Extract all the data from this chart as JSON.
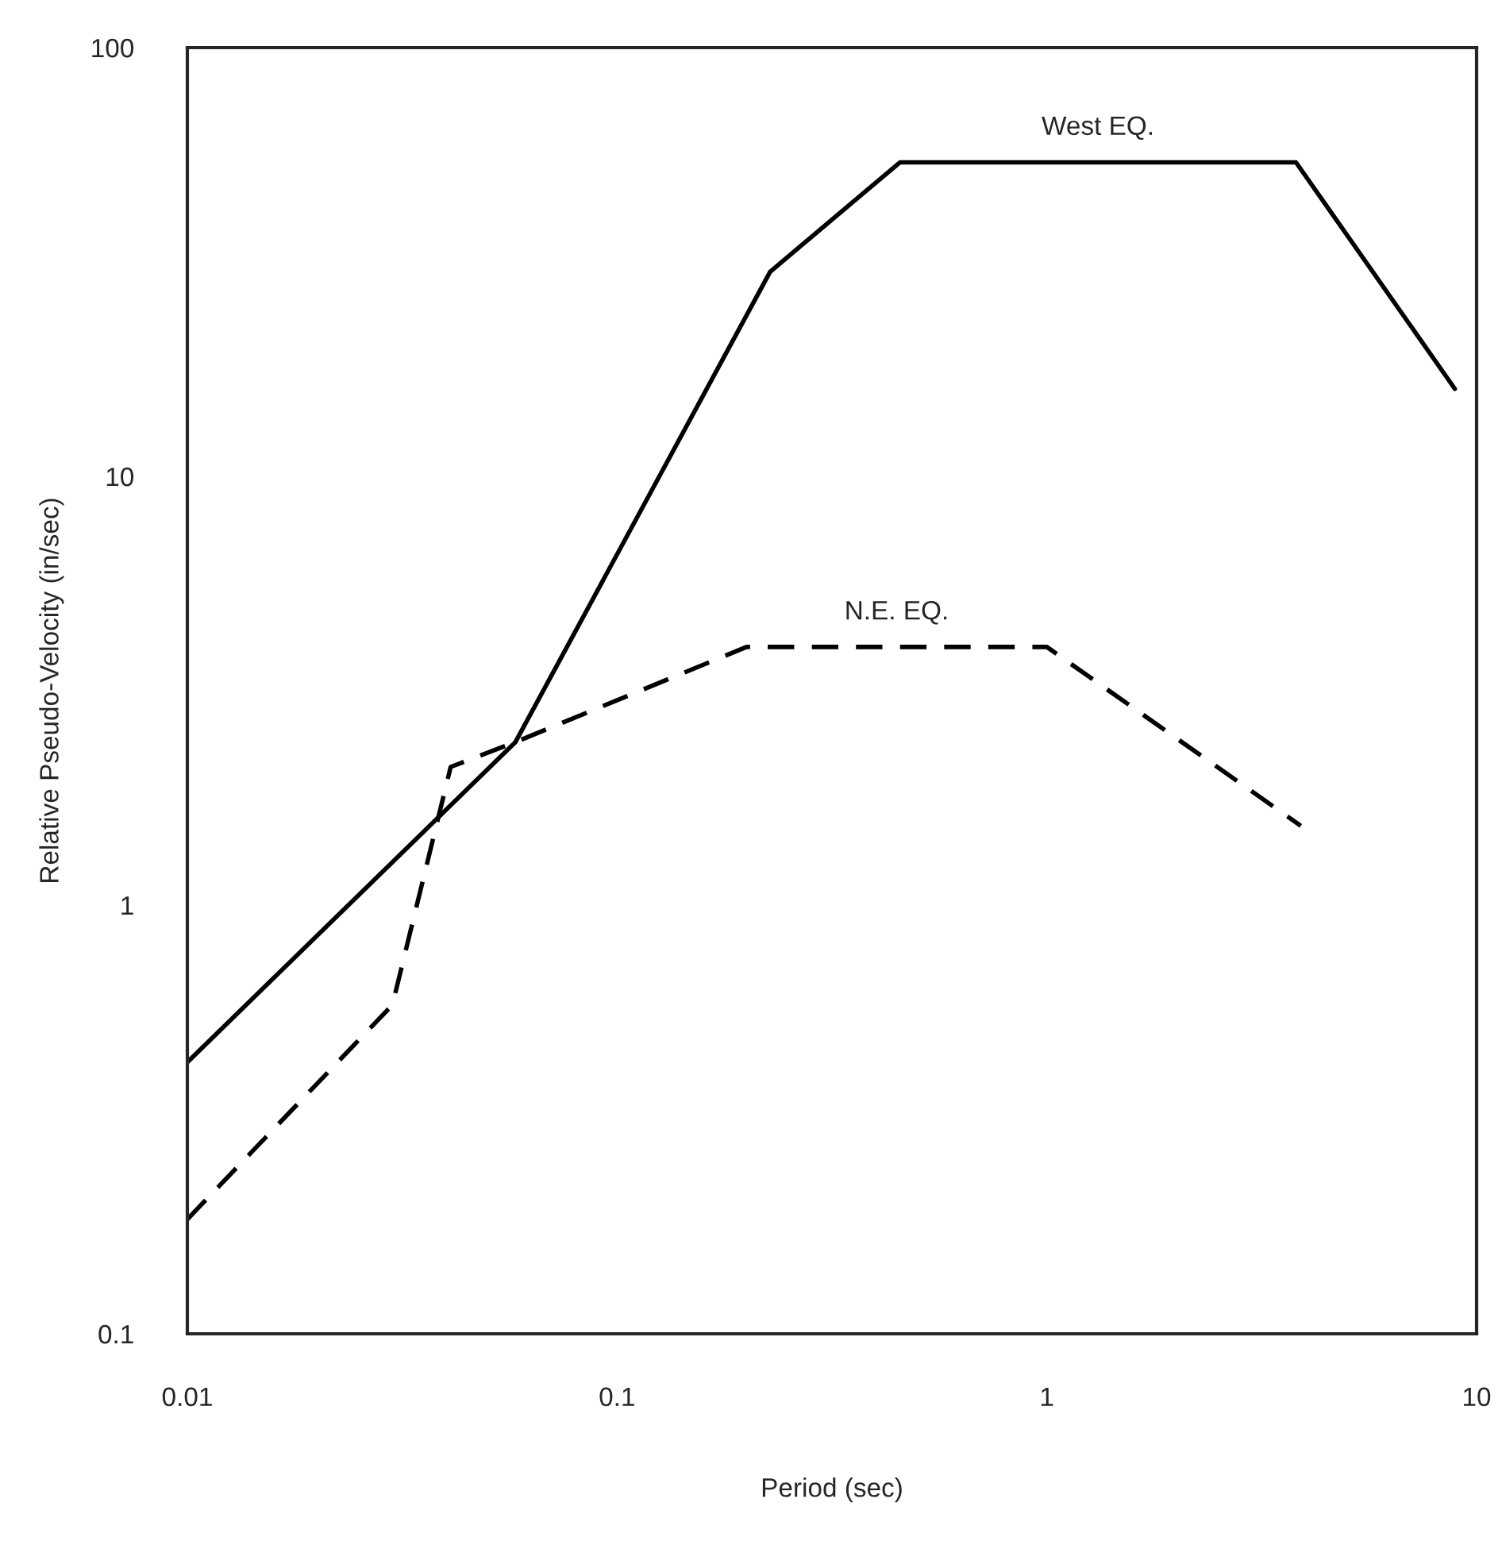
{
  "chart_data": {
    "type": "line",
    "xlabel": "Period (sec)",
    "ylabel": "Relative Pseudo-Velocity (in/sec)",
    "log": "xy",
    "grid": false,
    "legend": false,
    "marker": "none",
    "xlim": [
      0.01,
      10
    ],
    "ylim": [
      0.1,
      100
    ],
    "xticks": [
      0.01,
      0.1,
      1,
      10
    ],
    "yticks": [
      0.1,
      1,
      10,
      100
    ],
    "series": [
      {
        "name": "West EQ.",
        "color": "#000000",
        "line_style": "solid",
        "x": [
          0.01,
          0.058,
          0.227,
          0.455,
          3.8,
          8.9
        ],
        "values": [
          0.43,
          2.4,
          30,
          54,
          54,
          16
        ]
      },
      {
        "name": "N.E. EQ.",
        "color": "#000000",
        "line_style": "dashed",
        "x": [
          0.01,
          0.03,
          0.041,
          0.058,
          0.2,
          1.0,
          3.9
        ],
        "values": [
          0.185,
          0.585,
          2.1,
          2.4,
          4.0,
          4.0,
          1.53
        ]
      }
    ]
  }
}
